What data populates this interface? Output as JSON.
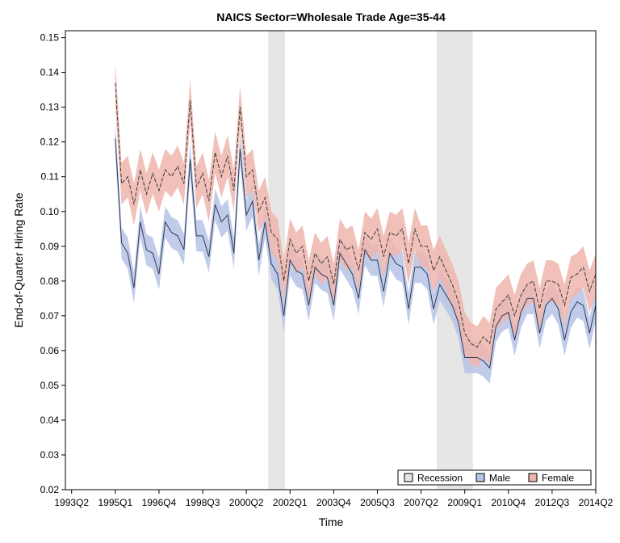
{
  "chart_data": {
    "type": "line",
    "title": "NAICS Sector=Wholesale Trade Age=35-44",
    "xlabel": "Time",
    "ylabel": "End-of-Quarter Hiring Rate",
    "ylim": [
      0.02,
      0.152
    ],
    "yticks": [
      0.02,
      0.03,
      0.04,
      0.05,
      0.06,
      0.07,
      0.08,
      0.09,
      0.1,
      0.11,
      0.12,
      0.13,
      0.14,
      0.15
    ],
    "ytick_labels": [
      "0.02",
      "0.03",
      "0.04",
      "0.05",
      "0.06",
      "0.07",
      "0.08",
      "0.09",
      "0.10",
      "0.11",
      "0.12",
      "0.13",
      "0.14",
      "0.15"
    ],
    "xlim_quarter_index": [
      -1,
      84
    ],
    "xticks": [
      {
        "label": "1993Q2",
        "q": 0
      },
      {
        "label": "1995Q1",
        "q": 7
      },
      {
        "label": "1996Q4",
        "q": 14
      },
      {
        "label": "1998Q3",
        "q": 21
      },
      {
        "label": "2000Q2",
        "q": 28
      },
      {
        "label": "2002Q1",
        "q": 35
      },
      {
        "label": "2003Q4",
        "q": 42
      },
      {
        "label": "2005Q3",
        "q": 49
      },
      {
        "label": "2007Q2",
        "q": 56
      },
      {
        "label": "2009Q1",
        "q": 63
      },
      {
        "label": "2010Q4",
        "q": 70
      },
      {
        "label": "2012Q3",
        "q": 77
      },
      {
        "label": "2014Q2",
        "q": 84
      }
    ],
    "recessions": [
      {
        "start_q": 31.5,
        "end_q": 34.2
      },
      {
        "start_q": 58.5,
        "end_q": 64.3
      }
    ],
    "legend": {
      "position": "bottom-right",
      "entries": [
        {
          "label": "Recession",
          "color": "#e6e6e6"
        },
        {
          "label": "Male",
          "color": "#b5c3e6"
        },
        {
          "label": "Female",
          "color": "#eeb5ad"
        }
      ]
    },
    "series": [
      {
        "name": "Male",
        "line_color": "#2f3a52",
        "band_color": "#b5c3e6",
        "band_halfwidth": 0.0045,
        "start_q": 7,
        "values": [
          0.121,
          0.091,
          0.088,
          0.078,
          0.097,
          0.089,
          0.088,
          0.082,
          0.097,
          0.094,
          0.093,
          0.089,
          0.115,
          0.093,
          0.093,
          0.087,
          0.102,
          0.097,
          0.099,
          0.088,
          0.118,
          0.099,
          0.103,
          0.086,
          0.097,
          0.085,
          0.082,
          0.07,
          0.086,
          0.083,
          0.082,
          0.073,
          0.084,
          0.082,
          0.081,
          0.073,
          0.088,
          0.085,
          0.082,
          0.075,
          0.089,
          0.086,
          0.086,
          0.077,
          0.088,
          0.085,
          0.084,
          0.072,
          0.084,
          0.084,
          0.082,
          0.072,
          0.079,
          0.076,
          0.073,
          0.068,
          0.058,
          0.058,
          0.058,
          0.057,
          0.055,
          0.067,
          0.07,
          0.071,
          0.063,
          0.071,
          0.075,
          0.075,
          0.065,
          0.073,
          0.075,
          0.072,
          0.063,
          0.071,
          0.074,
          0.073,
          0.065,
          0.073
        ]
      },
      {
        "name": "Female",
        "line_color": "#3a3a3a",
        "band_color": "#eeb5ad",
        "band_halfwidth": 0.006,
        "start_q": 7,
        "values": [
          0.137,
          0.108,
          0.11,
          0.102,
          0.112,
          0.105,
          0.111,
          0.106,
          0.112,
          0.11,
          0.113,
          0.108,
          0.132,
          0.107,
          0.111,
          0.103,
          0.117,
          0.11,
          0.116,
          0.106,
          0.13,
          0.11,
          0.112,
          0.1,
          0.104,
          0.094,
          0.092,
          0.08,
          0.092,
          0.088,
          0.09,
          0.08,
          0.088,
          0.085,
          0.087,
          0.079,
          0.092,
          0.089,
          0.09,
          0.083,
          0.094,
          0.092,
          0.095,
          0.087,
          0.094,
          0.093,
          0.095,
          0.085,
          0.095,
          0.09,
          0.09,
          0.083,
          0.087,
          0.083,
          0.079,
          0.074,
          0.065,
          0.062,
          0.061,
          0.064,
          0.062,
          0.072,
          0.074,
          0.076,
          0.07,
          0.076,
          0.079,
          0.08,
          0.072,
          0.08,
          0.08,
          0.079,
          0.073,
          0.081,
          0.082,
          0.084,
          0.077,
          0.082
        ]
      }
    ]
  }
}
